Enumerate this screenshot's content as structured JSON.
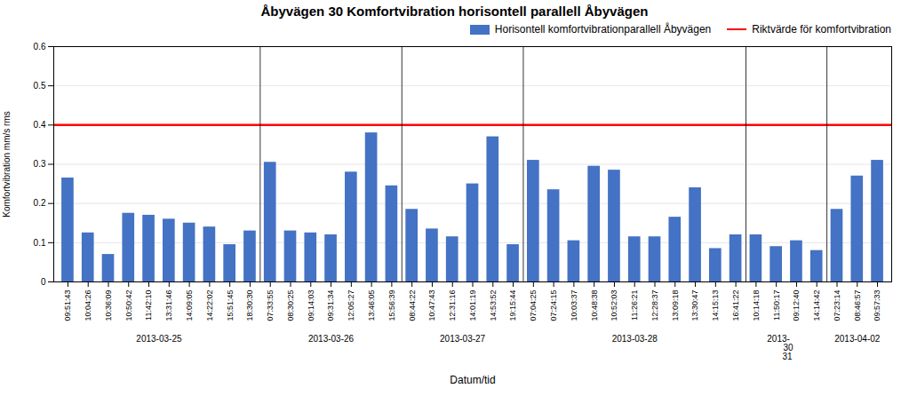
{
  "chart_data": {
    "type": "bar",
    "title": "Åbyvägen 30  Komfortvibration horisontell parallell Åbyvägen",
    "xlabel": "Datum/tid",
    "ylabel": "Komfortvibration mm/s rms",
    "categories": [
      "09:51:43",
      "10:04:26",
      "10:36:09",
      "10:50:42",
      "11:42:10",
      "13:31:46",
      "14:09:05",
      "14:22:02",
      "15:51:45",
      "18:30:30",
      "07:33:55",
      "08:30:25",
      "09:14:03",
      "09:31:34",
      "12:05:27",
      "13:46:05",
      "15:56:39",
      "08:44:22",
      "10:47:43",
      "12:31:16",
      "14:01:19",
      "14:53:52",
      "19:15:44",
      "07:04:25",
      "07:24:15",
      "10:03:37",
      "10:48:38",
      "10:52:03",
      "11:26:21",
      "12:28:37",
      "13:09:18",
      "13:30:47",
      "14:15:13",
      "16:41:22",
      "10:14:18",
      "11:50:17",
      "09:12:40",
      "14:14:42",
      "07:23:14",
      "08:46:57",
      "09:57:33"
    ],
    "series": [
      {
        "name": "Horisontell komfortvibrationparallell Åbyvägen",
        "color": "#4472C4",
        "values": [
          0.265,
          0.125,
          0.07,
          0.175,
          0.17,
          0.16,
          0.15,
          0.14,
          0.095,
          0.13,
          0.305,
          0.13,
          0.125,
          0.12,
          0.28,
          0.38,
          0.245,
          0.185,
          0.135,
          0.115,
          0.25,
          0.37,
          0.095,
          0.31,
          0.235,
          0.105,
          0.295,
          0.285,
          0.115,
          0.115,
          0.165,
          0.24,
          0.085,
          0.12,
          0.12,
          0.09,
          0.105,
          0.08,
          0.185,
          0.27,
          0.31
        ]
      }
    ],
    "threshold": {
      "name": "Riktvärde för komfortvibration",
      "value": 0.4,
      "color": "#FF0000"
    },
    "date_groups": [
      {
        "label": "2013-03-25",
        "start": 0,
        "end": 9
      },
      {
        "label": "2013-03-26",
        "start": 10,
        "end": 16
      },
      {
        "label": "2013-03-27",
        "start": 17,
        "end": 22
      },
      {
        "label": "2013-03-28",
        "start": 23,
        "end": 33
      },
      {
        "label": "2013-         \n  30\n 31",
        "start": 34,
        "end": 37
      },
      {
        "label": "2013-04-02",
        "start": 38,
        "end": 40
      }
    ],
    "ylim": [
      0,
      0.6
    ],
    "yticks": [
      0,
      0.1,
      0.2,
      0.3,
      0.4,
      0.5,
      0.6
    ],
    "grid": true,
    "legend": "upper right"
  }
}
